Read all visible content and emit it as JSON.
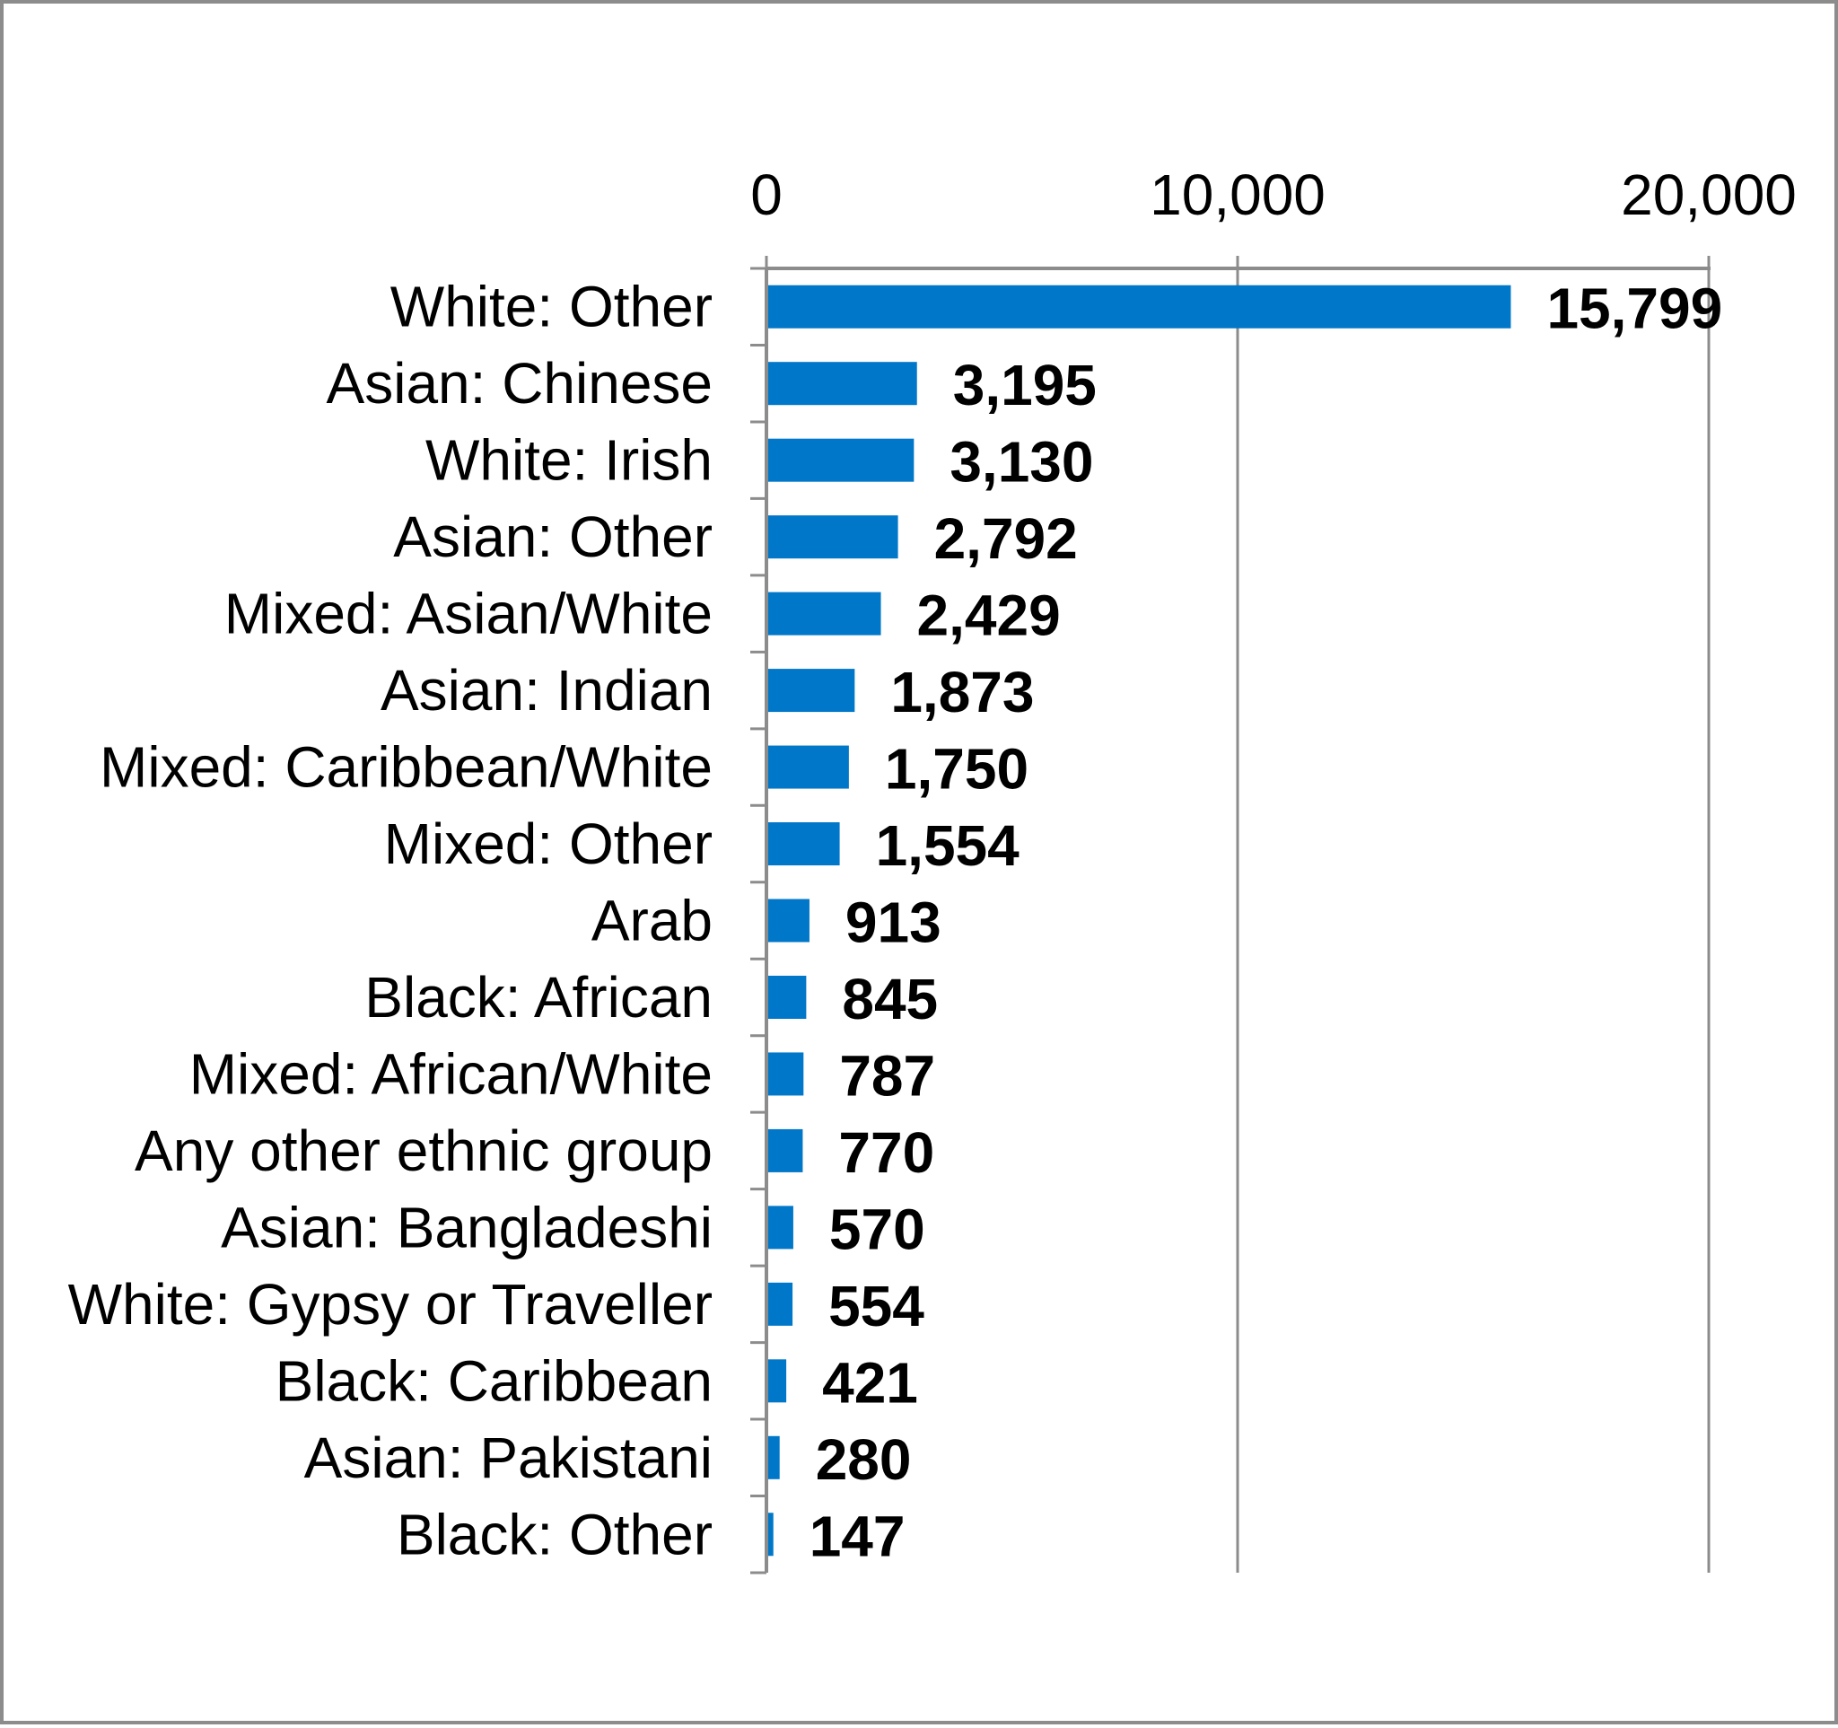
{
  "chart_data": {
    "type": "bar",
    "orientation": "horizontal",
    "categories": [
      "White: Other",
      "Asian: Chinese",
      "White: Irish",
      "Asian: Other",
      "Mixed: Asian/White",
      "Asian: Indian",
      "Mixed: Caribbean/White",
      "Mixed: Other",
      "Arab",
      "Black: African",
      "Mixed: African/White",
      "Any other ethnic group",
      "Asian: Bangladeshi",
      "White: Gypsy or Traveller",
      "Black: Caribbean",
      "Asian: Pakistani",
      "Black: Other"
    ],
    "values": [
      15799,
      3195,
      3130,
      2792,
      2429,
      1873,
      1750,
      1554,
      913,
      845,
      787,
      770,
      570,
      554,
      421,
      280,
      147
    ],
    "value_labels": [
      "15,799",
      "3,195",
      "3,130",
      "2,792",
      "2,429",
      "1,873",
      "1,750",
      "1,554",
      "913",
      "845",
      "787",
      "770",
      "570",
      "554",
      "421",
      "280",
      "147"
    ],
    "x_ticks": [
      0,
      10000,
      20000
    ],
    "x_tick_labels": [
      "0",
      "10,000",
      "20,000"
    ],
    "xlim": [
      0,
      20000
    ],
    "x_axis_position": "top",
    "grid": true,
    "legend": "none",
    "bar_color": "#0077c8"
  }
}
